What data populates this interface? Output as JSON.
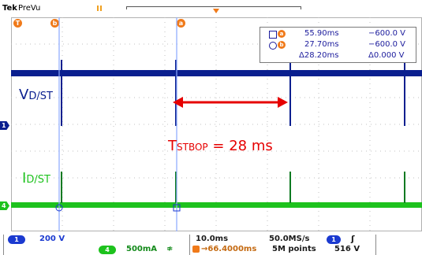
{
  "header": {
    "brand": "Tek",
    "mode": "PreVu",
    "trigger_marker": "T",
    "cursor_b_marker": "b",
    "cursor_a_marker": "a"
  },
  "measurements": {
    "cursor_a_time": "55.90ms",
    "cursor_a_volt": "−600.0 V",
    "cursor_b_time": "27.70ms",
    "cursor_b_volt": "−600.0 V",
    "delta_time": "Δ28.20ms",
    "delta_volt": "Δ0.000 V"
  },
  "annotations": {
    "v_label_main": "V",
    "v_label_sub": "D/ST",
    "i_label_main": "I",
    "i_label_sub": "D/ST",
    "t_label_main": "T",
    "t_label_sub": "STBOP",
    "t_label_value": "= 28 ms"
  },
  "channel_markers": {
    "ch1": "1",
    "ch4": "4"
  },
  "status": {
    "ch1_badge": "1",
    "ch1_scale": "200 V",
    "ch4_badge": "4",
    "ch4_scale": "500mA",
    "ch4_bw": "≉",
    "timebase": "10.0ms",
    "delay": "→66.4000ms",
    "sample_rate": "50.0MS/s",
    "record_length": "5M points",
    "trig_badge": "1",
    "trig_slope": "ʃ",
    "trig_level": "516 V"
  },
  "colors": {
    "ch1": "#0a1f8f",
    "ch4": "#1dc21d",
    "cursor": "#8aa8ff",
    "annotation": "#e60000",
    "marker_orange": "#f07a1a"
  }
}
